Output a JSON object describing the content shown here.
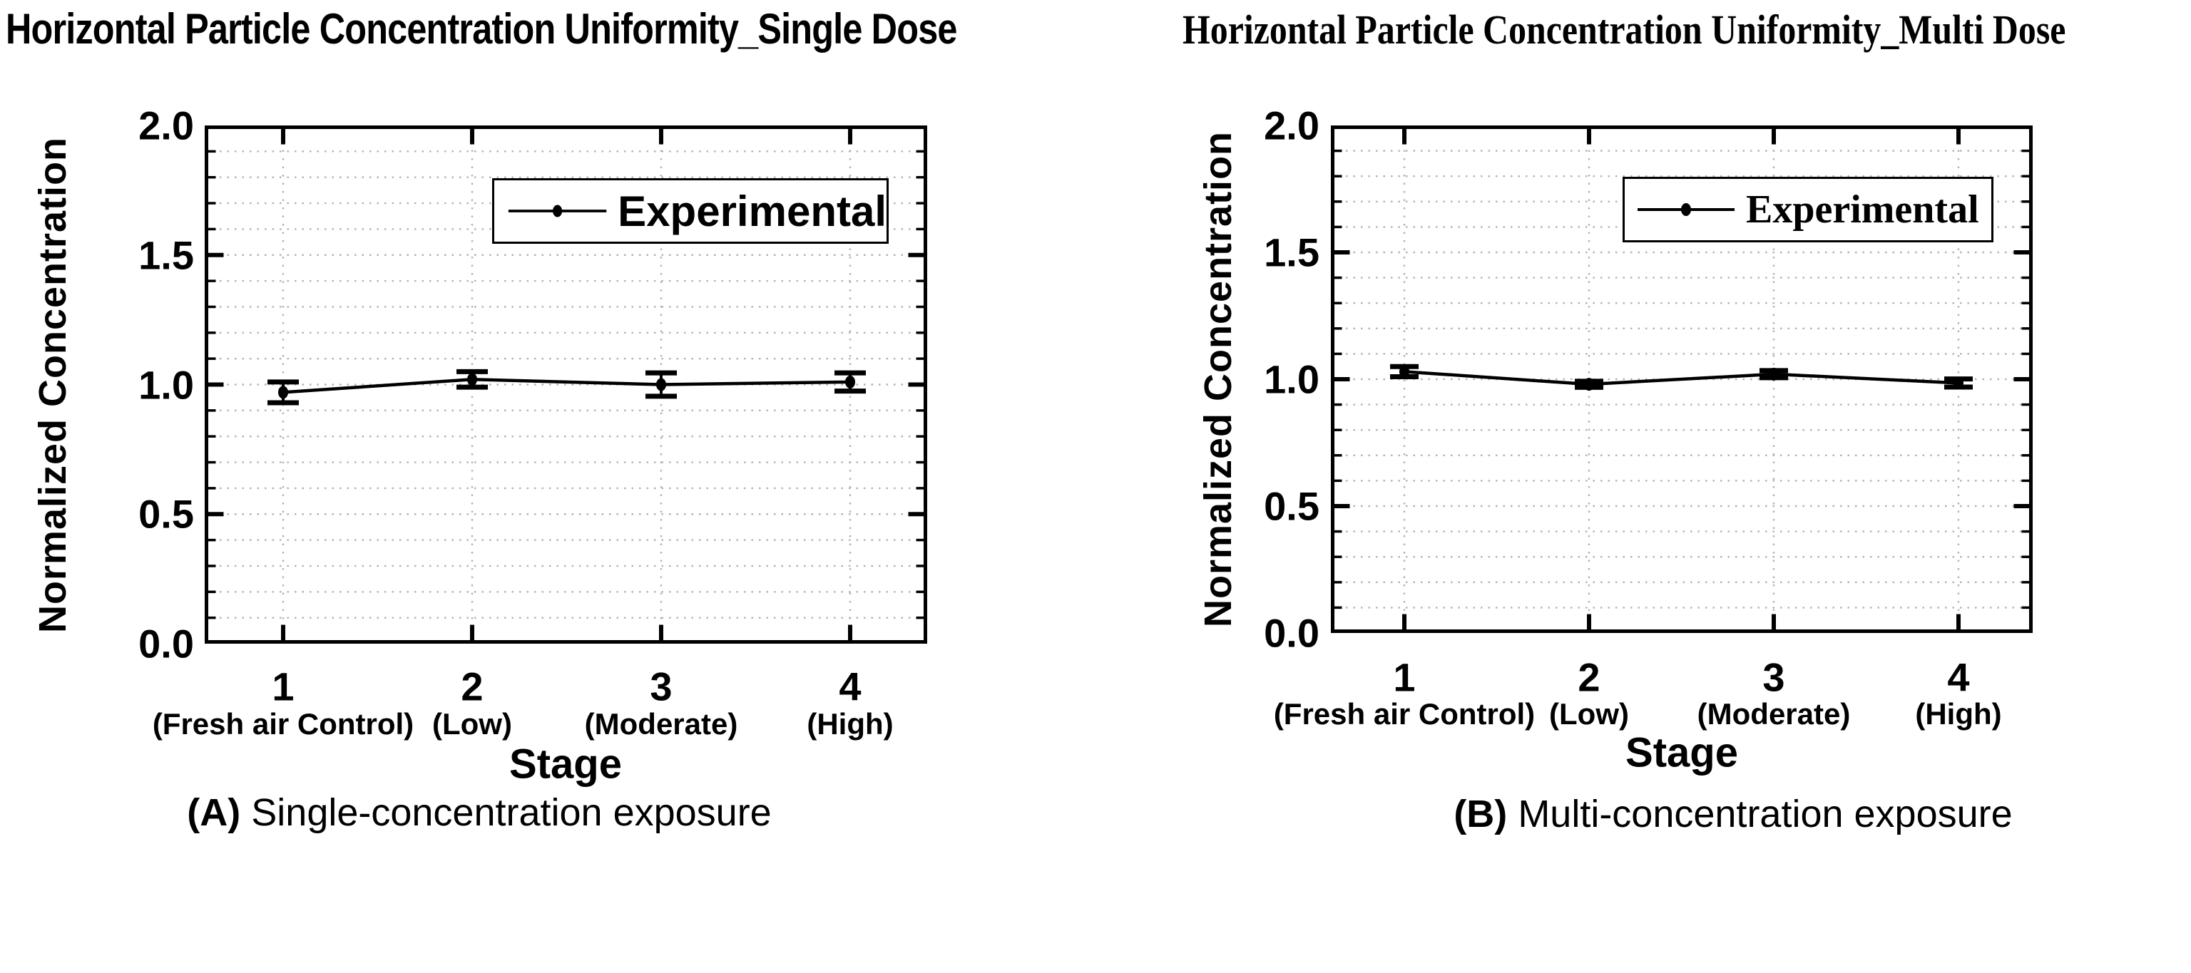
{
  "figure": {
    "background": "#ffffff",
    "text_color": "#000000",
    "grid_color": "#b3b3b3",
    "series_color": "#000000"
  },
  "chart_data": [
    {
      "type": "line",
      "title": "Horizontal Particle Concentration Uniformity_Single Dose",
      "caption": {
        "tag": "(A)",
        "text": "Single-concentration exposure"
      },
      "xlabel": "Stage",
      "ylabel": "Normalized Concentration",
      "x": [
        1,
        2,
        3,
        4
      ],
      "x_tick_labels": [
        "1",
        "2",
        "3",
        "4"
      ],
      "x_tick_sublabels": [
        "(Fresh air Control)",
        "(Low)",
        "(Moderate)",
        "(High)"
      ],
      "y_tick_labels": [
        "0.0",
        "0.5",
        "1.0",
        "1.5",
        "2.0"
      ],
      "y_tick_values": [
        0.0,
        0.5,
        1.0,
        1.5,
        2.0
      ],
      "ylim": [
        0.0,
        2.0
      ],
      "y_minor_step": 0.1,
      "grid": "dotted",
      "legend_position": "upper right",
      "series": [
        {
          "name": "Experimental",
          "values": [
            0.97,
            1.02,
            1.0,
            1.01
          ],
          "errors": [
            0.04,
            0.03,
            0.045,
            0.035
          ]
        }
      ]
    },
    {
      "type": "line",
      "title": "Horizontal Particle Concentration Uniformity_Multi Dose",
      "caption": {
        "tag": "(B)",
        "text": "Multi-concentration exposure"
      },
      "xlabel": "Stage",
      "ylabel": "Normalized Concentration",
      "x": [
        1,
        2,
        3,
        4
      ],
      "x_tick_labels": [
        "1",
        "2",
        "3",
        "4"
      ],
      "x_tick_sublabels": [
        "(Fresh air Control)",
        "(Low)",
        "(Moderate)",
        "(High)"
      ],
      "y_tick_labels": [
        "0.0",
        "0.5",
        "1.0",
        "1.5",
        "2.0"
      ],
      "y_tick_values": [
        0.0,
        0.5,
        1.0,
        1.5,
        2.0
      ],
      "ylim": [
        0.0,
        2.0
      ],
      "y_minor_step": 0.1,
      "grid": "dotted",
      "legend_position": "upper right",
      "series": [
        {
          "name": "Experimental",
          "values": [
            1.03,
            0.98,
            1.02,
            0.985
          ],
          "errors": [
            0.02,
            0.012,
            0.014,
            0.016
          ]
        }
      ]
    }
  ]
}
